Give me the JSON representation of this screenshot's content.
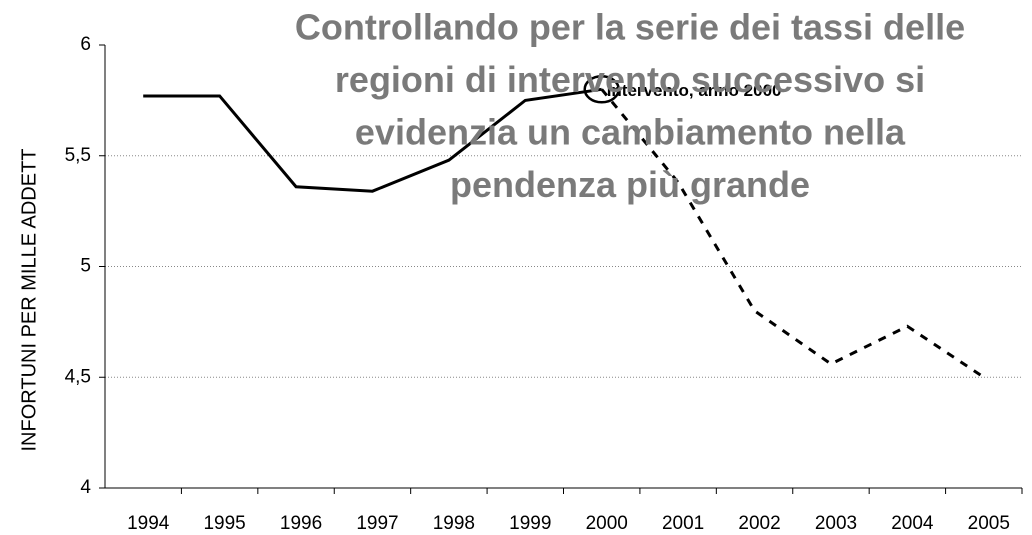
{
  "chart_data": {
    "type": "line",
    "title": [
      "Controllando per la serie dei tassi delle",
      "regioni di intervento successivo si",
      "evidenzia un cambiamento nella",
      "pendenza più grande"
    ],
    "y_label": "INFORTUNI PER MILLE ADDETT",
    "annotation": "Intervento, anno 2000",
    "categories": [
      "1994",
      "1995",
      "1996",
      "1997",
      "1998",
      "1999",
      "2000",
      "2001",
      "2002",
      "2003",
      "2004",
      "2005"
    ],
    "series": [
      {
        "color": "#000000",
        "style": "solid",
        "values": [
          5.77,
          5.77,
          5.36,
          5.34,
          5.48,
          5.75,
          5.8,
          null,
          null,
          null,
          null,
          null
        ]
      },
      {
        "color": "#000000",
        "style": "dashed",
        "values": [
          null,
          null,
          null,
          null,
          null,
          null,
          5.8,
          5.38,
          4.8,
          4.56,
          4.73,
          4.5
        ]
      }
    ],
    "ylim": [
      4,
      6
    ],
    "yticks": [
      4,
      {
        "value": 4.5,
        "label": "4,5"
      },
      5,
      {
        "value": 5.5,
        "label": "5,5"
      },
      6
    ],
    "grid": true
  }
}
